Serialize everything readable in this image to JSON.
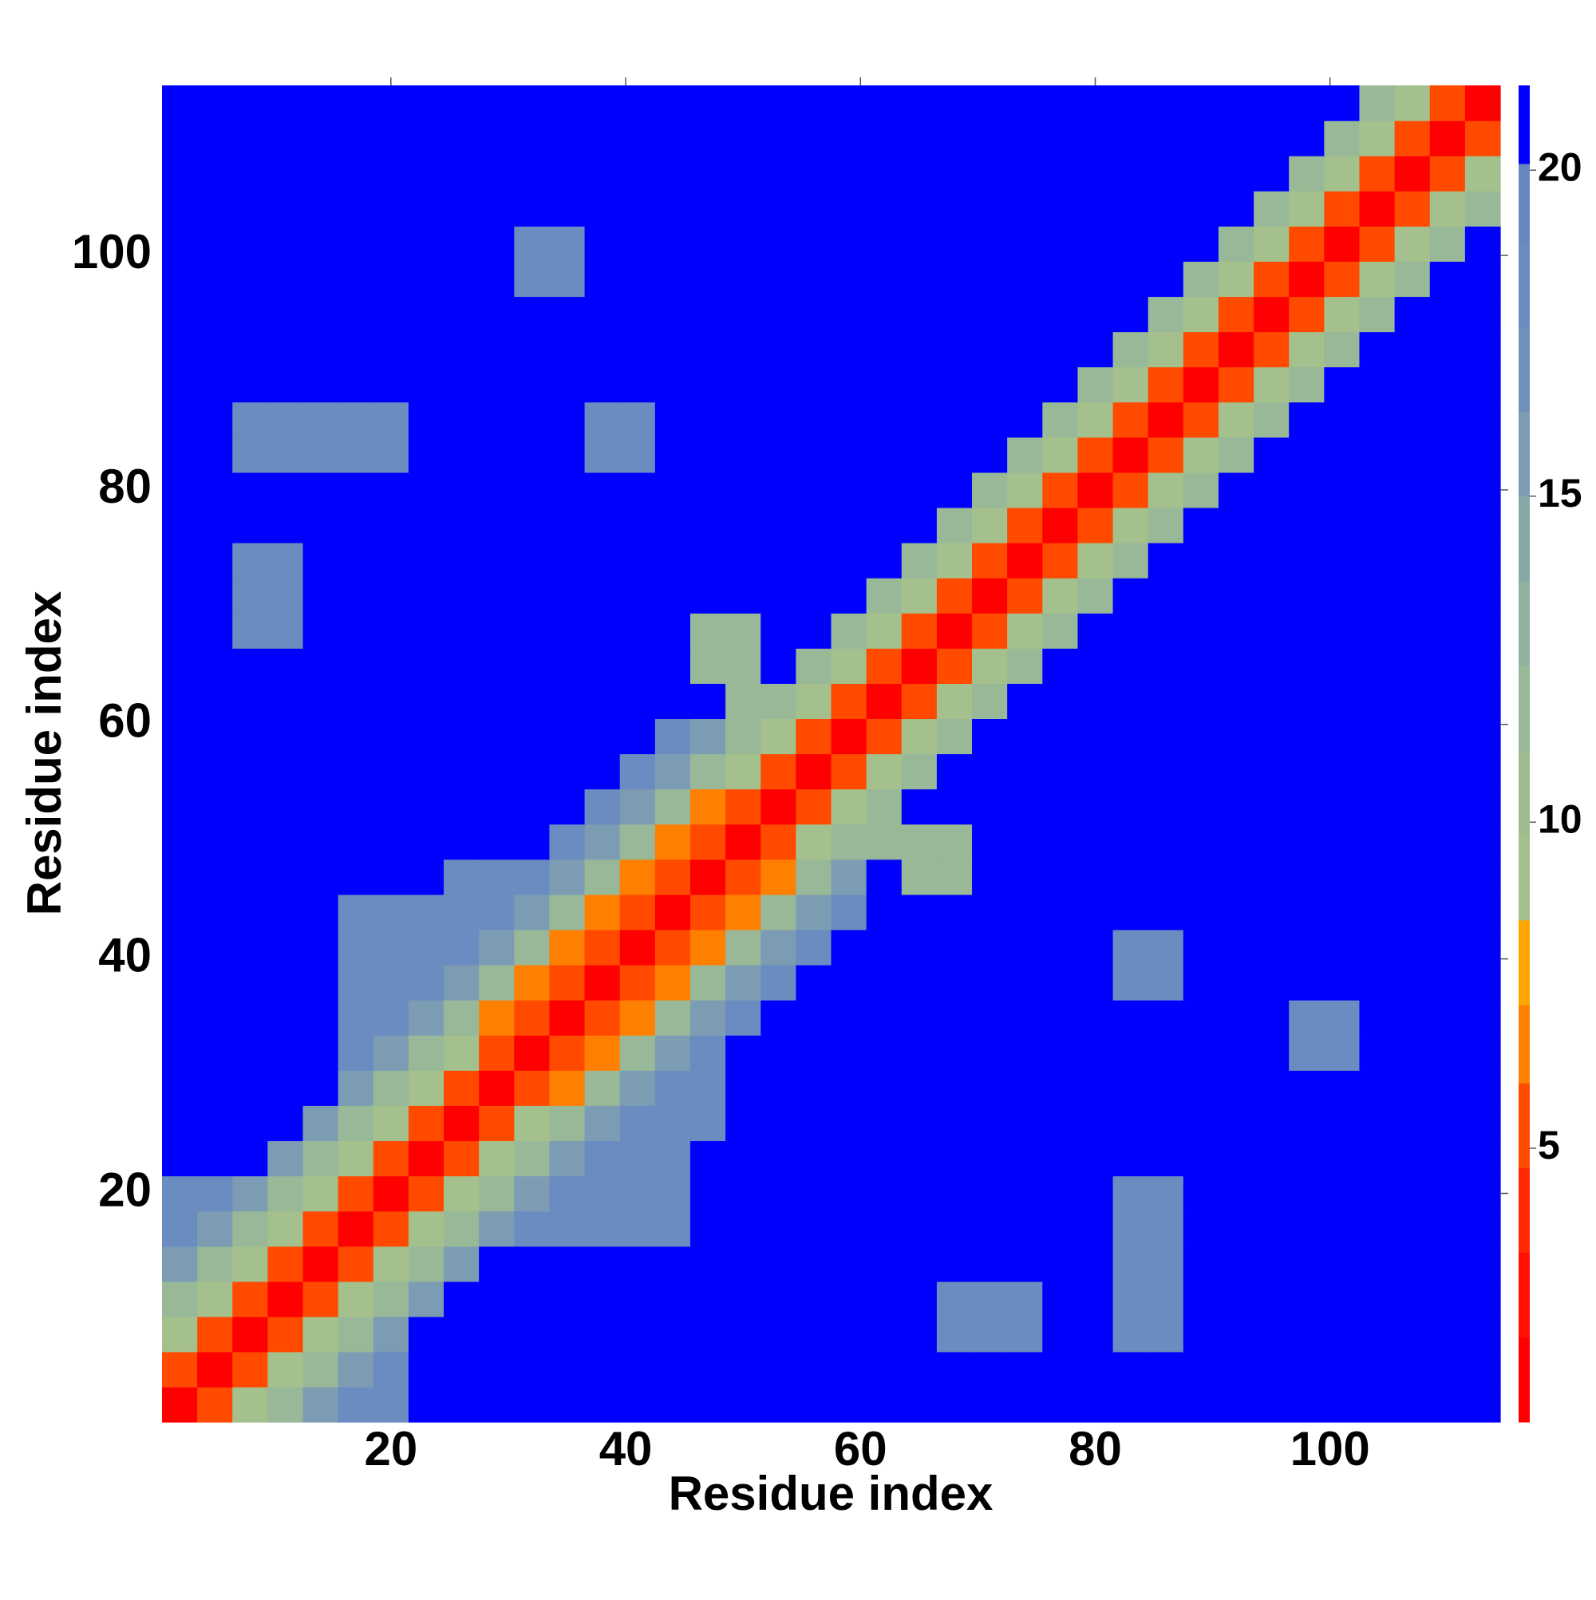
{
  "chart_data": {
    "type": "heatmap",
    "x_label": "Residue index",
    "y_label": "Residue index",
    "xlim": [
      0.5,
      114.5
    ],
    "ylim": [
      0.5,
      114.5
    ],
    "xticks": [
      20,
      40,
      60,
      80,
      100
    ],
    "yticks": [
      20,
      40,
      60,
      80,
      100
    ],
    "x": [
      2,
      5,
      8,
      11,
      14,
      17,
      20,
      23,
      26,
      29,
      32,
      35,
      38,
      41,
      44,
      47,
      50,
      53,
      56,
      59,
      62,
      65,
      68,
      71,
      74,
      77,
      80,
      83,
      86,
      89,
      92,
      95,
      98,
      101,
      104,
      107,
      110,
      113
    ],
    "y": [
      2,
      5,
      8,
      11,
      14,
      17,
      20,
      23,
      26,
      29,
      32,
      35,
      38,
      41,
      44,
      47,
      50,
      53,
      56,
      59,
      62,
      65,
      68,
      71,
      74,
      77,
      80,
      83,
      86,
      89,
      92,
      95,
      98,
      101,
      104,
      107,
      110,
      113
    ],
    "values": [
      [
        2,
        5,
        9,
        12,
        15,
        18,
        18,
        21,
        21,
        21,
        21,
        21,
        21,
        21,
        21,
        21,
        21,
        21,
        21,
        21,
        21,
        21,
        21,
        21,
        21,
        21,
        21,
        21,
        21,
        21,
        21,
        21,
        21,
        21,
        21,
        21,
        21,
        21
      ],
      [
        5,
        2,
        5,
        9,
        12,
        15,
        18,
        21,
        21,
        21,
        21,
        21,
        21,
        21,
        21,
        21,
        21,
        21,
        21,
        21,
        21,
        21,
        21,
        21,
        21,
        21,
        21,
        21,
        21,
        21,
        21,
        21,
        21,
        21,
        21,
        21,
        21,
        21
      ],
      [
        9,
        5,
        2,
        5,
        9,
        12,
        15,
        21,
        21,
        21,
        21,
        21,
        21,
        21,
        21,
        21,
        21,
        21,
        21,
        21,
        21,
        21,
        18,
        18,
        18,
        21,
        21,
        18,
        18,
        21,
        21,
        21,
        21,
        21,
        21,
        21,
        21,
        21
      ],
      [
        12,
        9,
        5,
        2,
        5,
        9,
        12,
        15,
        21,
        21,
        21,
        21,
        21,
        21,
        21,
        21,
        21,
        21,
        21,
        21,
        21,
        21,
        18,
        18,
        18,
        21,
        21,
        18,
        18,
        21,
        21,
        21,
        21,
        21,
        21,
        21,
        21,
        21
      ],
      [
        15,
        12,
        9,
        5,
        2,
        5,
        9,
        12,
        15,
        21,
        21,
        21,
        21,
        21,
        21,
        21,
        21,
        21,
        21,
        21,
        21,
        21,
        21,
        21,
        21,
        21,
        21,
        18,
        18,
        21,
        21,
        21,
        21,
        21,
        21,
        21,
        21,
        21
      ],
      [
        18,
        15,
        12,
        9,
        5,
        2,
        5,
        9,
        12,
        15,
        18,
        18,
        18,
        18,
        18,
        21,
        21,
        21,
        21,
        21,
        21,
        21,
        21,
        21,
        21,
        21,
        21,
        18,
        18,
        21,
        21,
        21,
        21,
        21,
        21,
        21,
        21,
        21
      ],
      [
        18,
        18,
        15,
        12,
        9,
        5,
        2,
        5,
        9,
        12,
        15,
        18,
        18,
        18,
        18,
        21,
        21,
        21,
        21,
        21,
        21,
        21,
        21,
        21,
        21,
        21,
        21,
        18,
        18,
        21,
        21,
        21,
        21,
        21,
        21,
        21,
        21,
        21
      ],
      [
        21,
        21,
        21,
        15,
        12,
        9,
        5,
        2,
        5,
        9,
        12,
        15,
        18,
        18,
        18,
        21,
        21,
        21,
        21,
        21,
        21,
        21,
        21,
        21,
        21,
        21,
        21,
        21,
        21,
        21,
        21,
        21,
        21,
        21,
        21,
        21,
        21,
        21
      ],
      [
        21,
        21,
        21,
        21,
        15,
        12,
        9,
        5,
        2,
        5,
        9,
        12,
        15,
        18,
        18,
        18,
        21,
        21,
        21,
        21,
        21,
        21,
        21,
        21,
        21,
        21,
        21,
        21,
        21,
        21,
        21,
        21,
        21,
        21,
        21,
        21,
        21,
        21
      ],
      [
        21,
        21,
        21,
        21,
        21,
        15,
        12,
        9,
        5,
        2,
        5,
        7,
        12,
        15,
        18,
        18,
        21,
        21,
        21,
        21,
        21,
        21,
        21,
        21,
        21,
        21,
        21,
        21,
        21,
        21,
        21,
        21,
        21,
        21,
        21,
        21,
        21,
        21
      ],
      [
        21,
        21,
        21,
        21,
        21,
        18,
        15,
        12,
        9,
        5,
        2,
        5,
        7,
        12,
        15,
        18,
        21,
        21,
        21,
        21,
        21,
        21,
        21,
        21,
        21,
        21,
        21,
        21,
        21,
        21,
        21,
        21,
        18,
        18,
        21,
        21,
        21,
        21
      ],
      [
        21,
        21,
        21,
        21,
        21,
        18,
        18,
        15,
        12,
        7,
        5,
        2,
        5,
        7,
        12,
        15,
        18,
        21,
        21,
        21,
        21,
        21,
        21,
        21,
        21,
        21,
        21,
        21,
        21,
        21,
        21,
        21,
        18,
        18,
        21,
        21,
        21,
        21
      ],
      [
        21,
        21,
        21,
        21,
        21,
        18,
        18,
        18,
        15,
        12,
        7,
        5,
        2,
        5,
        7,
        12,
        15,
        18,
        21,
        21,
        21,
        21,
        21,
        21,
        21,
        21,
        21,
        18,
        18,
        21,
        21,
        21,
        21,
        21,
        21,
        21,
        21,
        21
      ],
      [
        21,
        21,
        21,
        21,
        21,
        18,
        18,
        18,
        18,
        15,
        12,
        7,
        5,
        2,
        5,
        7,
        12,
        15,
        18,
        21,
        21,
        21,
        21,
        21,
        21,
        21,
        21,
        18,
        18,
        21,
        21,
        21,
        21,
        21,
        21,
        21,
        21,
        21
      ],
      [
        21,
        21,
        21,
        21,
        21,
        18,
        18,
        18,
        18,
        18,
        15,
        12,
        7,
        5,
        2,
        5,
        7,
        12,
        15,
        18,
        21,
        21,
        21,
        21,
        21,
        21,
        21,
        21,
        21,
        21,
        21,
        21,
        21,
        21,
        21,
        21,
        21,
        21
      ],
      [
        21,
        21,
        21,
        21,
        21,
        21,
        21,
        21,
        18,
        18,
        18,
        15,
        12,
        7,
        5,
        2,
        5,
        7,
        12,
        15,
        21,
        12,
        12,
        21,
        21,
        21,
        21,
        21,
        21,
        21,
        21,
        21,
        21,
        21,
        21,
        21,
        21,
        21
      ],
      [
        21,
        21,
        21,
        21,
        21,
        21,
        21,
        21,
        21,
        21,
        21,
        18,
        15,
        12,
        7,
        5,
        2,
        5,
        9,
        12,
        12,
        12,
        12,
        21,
        21,
        21,
        21,
        21,
        21,
        21,
        21,
        21,
        21,
        21,
        21,
        21,
        21,
        21
      ],
      [
        21,
        21,
        21,
        21,
        21,
        21,
        21,
        21,
        21,
        21,
        21,
        21,
        18,
        15,
        12,
        7,
        5,
        2,
        5,
        9,
        12,
        21,
        21,
        21,
        21,
        21,
        21,
        21,
        21,
        21,
        21,
        21,
        21,
        21,
        21,
        21,
        21,
        21
      ],
      [
        21,
        21,
        21,
        21,
        21,
        21,
        21,
        21,
        21,
        21,
        21,
        21,
        21,
        18,
        15,
        12,
        9,
        5,
        2,
        5,
        9,
        12,
        21,
        21,
        21,
        21,
        21,
        21,
        21,
        21,
        21,
        21,
        21,
        21,
        21,
        21,
        21,
        21
      ],
      [
        21,
        21,
        21,
        21,
        21,
        21,
        21,
        21,
        21,
        21,
        21,
        21,
        21,
        21,
        18,
        15,
        12,
        9,
        5,
        2,
        5,
        9,
        12,
        21,
        21,
        21,
        21,
        21,
        21,
        21,
        21,
        21,
        21,
        21,
        21,
        21,
        21,
        21
      ],
      [
        21,
        21,
        21,
        21,
        21,
        21,
        21,
        21,
        21,
        21,
        21,
        21,
        21,
        21,
        21,
        21,
        12,
        12,
        9,
        5,
        2,
        5,
        9,
        12,
        21,
        21,
        21,
        21,
        21,
        21,
        21,
        21,
        21,
        21,
        21,
        21,
        21,
        21
      ],
      [
        21,
        21,
        21,
        21,
        21,
        21,
        21,
        21,
        21,
        21,
        21,
        21,
        21,
        21,
        21,
        12,
        12,
        21,
        12,
        9,
        5,
        2,
        5,
        9,
        12,
        21,
        21,
        21,
        21,
        21,
        21,
        21,
        21,
        21,
        21,
        21,
        21,
        21
      ],
      [
        21,
        21,
        18,
        18,
        21,
        21,
        21,
        21,
        21,
        21,
        21,
        21,
        21,
        21,
        21,
        12,
        12,
        21,
        21,
        12,
        9,
        5,
        2,
        5,
        9,
        12,
        21,
        21,
        21,
        21,
        21,
        21,
        21,
        21,
        21,
        21,
        21,
        21
      ],
      [
        21,
        21,
        18,
        18,
        21,
        21,
        21,
        21,
        21,
        21,
        21,
        21,
        21,
        21,
        21,
        21,
        21,
        21,
        21,
        21,
        12,
        9,
        5,
        2,
        5,
        9,
        12,
        21,
        21,
        21,
        21,
        21,
        21,
        21,
        21,
        21,
        21,
        21
      ],
      [
        21,
        21,
        18,
        18,
        21,
        21,
        21,
        21,
        21,
        21,
        21,
        21,
        21,
        21,
        21,
        21,
        21,
        21,
        21,
        21,
        21,
        12,
        9,
        5,
        2,
        5,
        9,
        12,
        21,
        21,
        21,
        21,
        21,
        21,
        21,
        21,
        21,
        21
      ],
      [
        21,
        21,
        21,
        21,
        21,
        21,
        21,
        21,
        21,
        21,
        21,
        21,
        21,
        21,
        21,
        21,
        21,
        21,
        21,
        21,
        21,
        21,
        12,
        9,
        5,
        2,
        5,
        9,
        12,
        21,
        21,
        21,
        21,
        21,
        21,
        21,
        21,
        21
      ],
      [
        21,
        21,
        21,
        21,
        21,
        21,
        21,
        21,
        21,
        21,
        21,
        21,
        21,
        21,
        21,
        21,
        21,
        21,
        21,
        21,
        21,
        21,
        21,
        12,
        9,
        5,
        2,
        5,
        9,
        12,
        21,
        21,
        21,
        21,
        21,
        21,
        21,
        21
      ],
      [
        21,
        21,
        18,
        18,
        18,
        18,
        18,
        21,
        21,
        21,
        21,
        21,
        18,
        18,
        21,
        21,
        21,
        21,
        21,
        21,
        21,
        21,
        21,
        21,
        12,
        9,
        5,
        2,
        5,
        9,
        12,
        21,
        21,
        21,
        21,
        21,
        21,
        21
      ],
      [
        21,
        21,
        18,
        18,
        18,
        18,
        18,
        21,
        21,
        21,
        21,
        21,
        18,
        18,
        21,
        21,
        21,
        21,
        21,
        21,
        21,
        21,
        21,
        21,
        21,
        12,
        9,
        5,
        2,
        5,
        9,
        12,
        21,
        21,
        21,
        21,
        21,
        21
      ],
      [
        21,
        21,
        21,
        21,
        21,
        21,
        21,
        21,
        21,
        21,
        21,
        21,
        21,
        21,
        21,
        21,
        21,
        21,
        21,
        21,
        21,
        21,
        21,
        21,
        21,
        21,
        12,
        9,
        5,
        2,
        5,
        9,
        12,
        21,
        21,
        21,
        21,
        21
      ],
      [
        21,
        21,
        21,
        21,
        21,
        21,
        21,
        21,
        21,
        21,
        21,
        21,
        21,
        21,
        21,
        21,
        21,
        21,
        21,
        21,
        21,
        21,
        21,
        21,
        21,
        21,
        21,
        12,
        9,
        5,
        2,
        5,
        9,
        12,
        21,
        21,
        21,
        21
      ],
      [
        21,
        21,
        21,
        21,
        21,
        21,
        21,
        21,
        21,
        21,
        21,
        21,
        21,
        21,
        21,
        21,
        21,
        21,
        21,
        21,
        21,
        21,
        21,
        21,
        21,
        21,
        21,
        21,
        12,
        9,
        5,
        2,
        5,
        9,
        12,
        21,
        21,
        21
      ],
      [
        21,
        21,
        21,
        21,
        21,
        21,
        21,
        21,
        21,
        21,
        18,
        18,
        21,
        21,
        21,
        21,
        21,
        21,
        21,
        21,
        21,
        21,
        21,
        21,
        21,
        21,
        21,
        21,
        21,
        12,
        9,
        5,
        2,
        5,
        9,
        12,
        21,
        21
      ],
      [
        21,
        21,
        21,
        21,
        21,
        21,
        21,
        21,
        21,
        21,
        18,
        18,
        21,
        21,
        21,
        21,
        21,
        21,
        21,
        21,
        21,
        21,
        21,
        21,
        21,
        21,
        21,
        21,
        21,
        21,
        12,
        9,
        5,
        2,
        5,
        9,
        12,
        21
      ],
      [
        21,
        21,
        21,
        21,
        21,
        21,
        21,
        21,
        21,
        21,
        21,
        21,
        21,
        21,
        21,
        21,
        21,
        21,
        21,
        21,
        21,
        21,
        21,
        21,
        21,
        21,
        21,
        21,
        21,
        21,
        21,
        12,
        9,
        5,
        2,
        5,
        9,
        12
      ],
      [
        21,
        21,
        21,
        21,
        21,
        21,
        21,
        21,
        21,
        21,
        21,
        21,
        21,
        21,
        21,
        21,
        21,
        21,
        21,
        21,
        21,
        21,
        21,
        21,
        21,
        21,
        21,
        21,
        21,
        21,
        21,
        21,
        12,
        9,
        5,
        2,
        5,
        9
      ],
      [
        21,
        21,
        21,
        21,
        21,
        21,
        21,
        21,
        21,
        21,
        21,
        21,
        21,
        21,
        21,
        21,
        21,
        21,
        21,
        21,
        21,
        21,
        21,
        21,
        21,
        21,
        21,
        21,
        21,
        21,
        21,
        21,
        21,
        12,
        9,
        5,
        2,
        5
      ],
      [
        21,
        21,
        21,
        21,
        21,
        21,
        21,
        21,
        21,
        21,
        21,
        21,
        21,
        21,
        21,
        21,
        21,
        21,
        21,
        21,
        21,
        21,
        21,
        21,
        21,
        21,
        21,
        21,
        21,
        21,
        21,
        21,
        21,
        21,
        12,
        9,
        5,
        2
      ]
    ],
    "colorbar": {
      "levels": [
        0.8,
        2.1,
        3.4,
        4.7,
        6.0,
        7.2,
        8.5,
        9.8,
        11.1,
        12.4,
        13.7,
        15,
        16.3,
        17.6,
        18.9,
        20.1,
        21.3
      ],
      "colors": [
        "#ff0000",
        "#ff1000",
        "#ff2800",
        "#ff4a00",
        "#ff8000",
        "#ffa500",
        "#a4c08c",
        "#9cbc90",
        "#98b898",
        "#90b0a0",
        "#88a8a8",
        "#7c9cb4",
        "#7090bc",
        "#6a8cc0",
        "#6688c0",
        "#0000ff"
      ],
      "ticks": [
        5,
        10,
        15,
        20
      ]
    }
  }
}
